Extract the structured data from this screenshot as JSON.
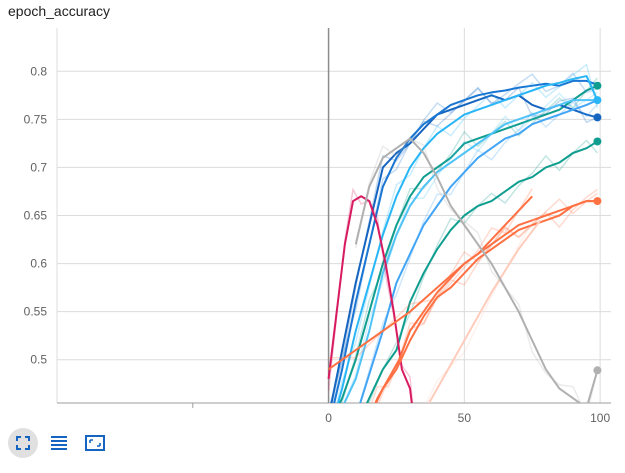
{
  "title": "epoch_accuracy",
  "colors": {
    "grid": "#dcdcdc",
    "axis": "#9e9e9e",
    "zero_line": "#8c8c8c",
    "toolbar_icon": "#1565c0",
    "toolbar_active_bg": "#e0e0e0"
  },
  "toolbar": [
    {
      "name": "fit-domain-button",
      "icon": "fullscreen-icon",
      "active": true
    },
    {
      "name": "log-scale-button",
      "icon": "list-icon",
      "active": false
    },
    {
      "name": "toggle-fit-button",
      "icon": "frame-icon",
      "active": false
    }
  ],
  "chart_data": {
    "type": "line",
    "title": "epoch_accuracy",
    "xlabel": "",
    "ylabel": "",
    "xlim": [
      -100,
      104
    ],
    "ylim": [
      0.455,
      0.845
    ],
    "xticks": [
      0,
      50,
      100
    ],
    "yticks": [
      0.5,
      0.55,
      0.6,
      0.65,
      0.7,
      0.75,
      0.8
    ],
    "grid": true,
    "series": [
      {
        "color": "#0f9d8f",
        "x": [
          0,
          5,
          10,
          15,
          20,
          25,
          30,
          35,
          40,
          45,
          50,
          55,
          60,
          65,
          70,
          75,
          80,
          85,
          90,
          95,
          99
        ],
        "y": [
          0.43,
          0.46,
          0.5,
          0.55,
          0.6,
          0.64,
          0.67,
          0.69,
          0.7,
          0.71,
          0.725,
          0.73,
          0.735,
          0.74,
          0.745,
          0.75,
          0.755,
          0.76,
          0.77,
          0.78,
          0.785
        ]
      },
      {
        "color": "#0f9d8f",
        "x": [
          0,
          10,
          20,
          25,
          30,
          35,
          40,
          45,
          50,
          55,
          60,
          65,
          70,
          75,
          80,
          85,
          90,
          95,
          99
        ],
        "y": [
          0.42,
          0.43,
          0.49,
          0.51,
          0.56,
          0.59,
          0.615,
          0.635,
          0.65,
          0.66,
          0.665,
          0.675,
          0.685,
          0.69,
          0.7,
          0.705,
          0.715,
          0.72,
          0.727
        ]
      },
      {
        "color": "#1565c0",
        "x": [
          0,
          5,
          10,
          15,
          20,
          25,
          30,
          35,
          40,
          45,
          50,
          55,
          60,
          65,
          70,
          75,
          80,
          85,
          90,
          95,
          99
        ],
        "y": [
          0.44,
          0.51,
          0.58,
          0.64,
          0.7,
          0.715,
          0.725,
          0.74,
          0.755,
          0.76,
          0.765,
          0.77,
          0.775,
          0.77,
          0.775,
          0.765,
          0.76,
          0.765,
          0.76,
          0.755,
          0.752
        ]
      },
      {
        "color": "#1976d2",
        "x": [
          0,
          5,
          10,
          15,
          20,
          25,
          30,
          35,
          40,
          45,
          50,
          55,
          60,
          65,
          70,
          75,
          80,
          85,
          90,
          95,
          99
        ],
        "y": [
          0.43,
          0.49,
          0.56,
          0.62,
          0.68,
          0.71,
          0.73,
          0.745,
          0.755,
          0.765,
          0.77,
          0.775,
          0.778,
          0.78,
          0.783,
          0.785,
          0.787,
          0.785,
          0.79,
          0.79,
          0.786
        ]
      },
      {
        "color": "#29b6f6",
        "x": [
          0,
          5,
          10,
          15,
          20,
          25,
          30,
          35,
          40,
          45,
          50,
          55,
          60,
          65,
          70,
          75,
          80,
          85,
          90,
          95,
          99
        ],
        "y": [
          0.42,
          0.47,
          0.53,
          0.58,
          0.63,
          0.67,
          0.7,
          0.72,
          0.735,
          0.745,
          0.755,
          0.76,
          0.765,
          0.77,
          0.775,
          0.78,
          0.785,
          0.788,
          0.792,
          0.795,
          0.77
        ]
      },
      {
        "color": "#4fc3f7",
        "x": [
          0,
          10,
          15,
          20,
          25,
          30,
          35,
          40,
          45,
          50,
          55,
          60,
          65,
          70,
          75,
          80,
          85,
          90,
          95,
          99
        ],
        "y": [
          0.42,
          0.48,
          0.53,
          0.59,
          0.63,
          0.66,
          0.68,
          0.695,
          0.705,
          0.715,
          0.725,
          0.735,
          0.745,
          0.75,
          0.755,
          0.76,
          0.765,
          0.77,
          0.77,
          0.77
        ]
      },
      {
        "color": "#42a5f5",
        "x": [
          0,
          10,
          20,
          25,
          30,
          35,
          40,
          45,
          50,
          55,
          60,
          65,
          70,
          75,
          80,
          85,
          90,
          95,
          99
        ],
        "y": [
          0.41,
          0.44,
          0.53,
          0.58,
          0.61,
          0.64,
          0.66,
          0.68,
          0.695,
          0.71,
          0.72,
          0.73,
          0.735,
          0.745,
          0.75,
          0.755,
          0.76,
          0.765,
          0.77
        ]
      },
      {
        "color": "#d81b60",
        "x": [
          0,
          3,
          6,
          9,
          12,
          15,
          18,
          21,
          24,
          27,
          30,
          33
        ],
        "y": [
          0.48,
          0.55,
          0.62,
          0.665,
          0.67,
          0.665,
          0.64,
          0.6,
          0.55,
          0.49,
          0.47,
          0.4
        ]
      },
      {
        "color": "#ff7043",
        "x": [
          0,
          10,
          20,
          30,
          40,
          50,
          55,
          60,
          65,
          70,
          75
        ],
        "y": [
          0.49,
          0.51,
          0.53,
          0.55,
          0.575,
          0.6,
          0.61,
          0.625,
          0.64,
          0.655,
          0.67
        ]
      },
      {
        "color": "#ff7043",
        "x": [
          10,
          15,
          20,
          25,
          30,
          35,
          40,
          45,
          50,
          55,
          60,
          65,
          70,
          75,
          80,
          85,
          90,
          95,
          99
        ],
        "y": [
          0.42,
          0.44,
          0.47,
          0.49,
          0.52,
          0.545,
          0.565,
          0.575,
          0.59,
          0.605,
          0.615,
          0.625,
          0.635,
          0.64,
          0.645,
          0.65,
          0.66,
          0.665,
          0.665
        ]
      },
      {
        "color": "#ff7043",
        "x": [
          12,
          18,
          22,
          26,
          30,
          35,
          40,
          45,
          50,
          55,
          60,
          65,
          70,
          75,
          80,
          85,
          90,
          95,
          99
        ],
        "y": [
          0.42,
          0.46,
          0.48,
          0.5,
          0.53,
          0.55,
          0.57,
          0.585,
          0.6,
          0.61,
          0.62,
          0.63,
          0.64,
          0.645,
          0.65,
          0.655,
          0.66,
          0.665,
          0.665
        ]
      },
      {
        "color": "#ffccbc",
        "x": [
          30,
          40,
          50,
          60,
          70,
          78
        ],
        "y": [
          0.42,
          0.47,
          0.52,
          0.57,
          0.615,
          0.645
        ]
      },
      {
        "color": "#b0b0b0",
        "x": [
          10,
          15,
          20,
          25,
          30,
          35,
          40,
          45,
          50,
          55,
          60,
          65,
          70,
          75,
          80,
          85,
          90,
          95,
          99
        ],
        "y": [
          0.62,
          0.68,
          0.71,
          0.72,
          0.73,
          0.715,
          0.69,
          0.66,
          0.64,
          0.62,
          0.6,
          0.575,
          0.55,
          0.52,
          0.49,
          0.47,
          0.46,
          0.45,
          0.489
        ]
      }
    ],
    "end_markers": [
      {
        "color": "#0f9d8f",
        "x": 99,
        "y": 0.785
      },
      {
        "color": "#29b6f6",
        "x": 99,
        "y": 0.77
      },
      {
        "color": "#1565c0",
        "x": 99,
        "y": 0.752
      },
      {
        "color": "#0f9d8f",
        "x": 99,
        "y": 0.727
      },
      {
        "color": "#ff7043",
        "x": 99,
        "y": 0.665
      },
      {
        "color": "#b0b0b0",
        "x": 99,
        "y": 0.489
      }
    ]
  }
}
